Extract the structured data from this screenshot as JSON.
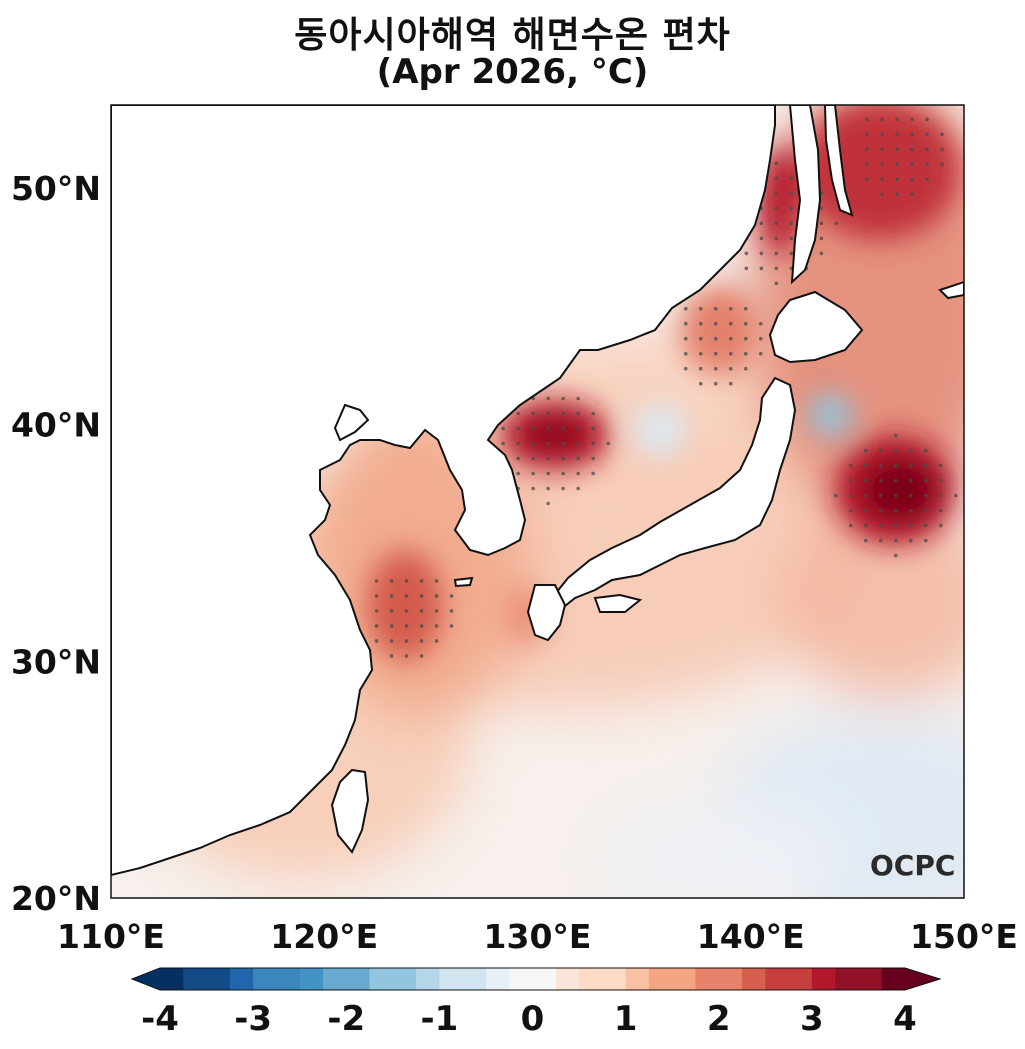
{
  "title": {
    "line1": "동아시아해역 해면수온 편차",
    "line2": "(Apr 2026, °C)"
  },
  "map": {
    "lon_range": [
      110,
      150
    ],
    "lat_range": [
      20,
      53.5
    ],
    "lon_ticks": [
      "110°E",
      "120°E",
      "130°E",
      "140°E",
      "150°E"
    ],
    "lat_ticks": [
      "20°N",
      "30°N",
      "40°N",
      "50°N"
    ],
    "region": "East Asian seas (Yellow Sea, East China Sea, East Sea, NW Pacific)",
    "stippling": "significant anomaly areas marked with dots"
  },
  "colorbar": {
    "min": -4,
    "max": 4,
    "ticks": [
      "-4",
      "-3",
      "-2",
      "-1",
      "0",
      "1",
      "2",
      "3",
      "4"
    ],
    "extend": "both",
    "colormap": "RdBu_r"
  },
  "logo": {
    "text": "OCPC"
  },
  "anomaly_centers": [
    {
      "lon": 130.5,
      "lat": 39.2,
      "value": 3.5
    },
    {
      "lon": 146.8,
      "lat": 37.0,
      "value": 4.0
    },
    {
      "lon": 141.2,
      "lat": 48.5,
      "value": 3.5
    },
    {
      "lon": 147.0,
      "lat": 51.5,
      "value": 3.0
    },
    {
      "lon": 124.0,
      "lat": 32.0,
      "value": 2.5
    },
    {
      "lon": 138.5,
      "lat": 43.5,
      "value": 2.3
    },
    {
      "lon": 143.8,
      "lat": 40.5,
      "value": -1.3
    },
    {
      "lon": 134.5,
      "lat": 39.6,
      "value": -0.8
    },
    {
      "lon": 146.0,
      "lat": 23.0,
      "value": -0.5
    }
  ]
}
